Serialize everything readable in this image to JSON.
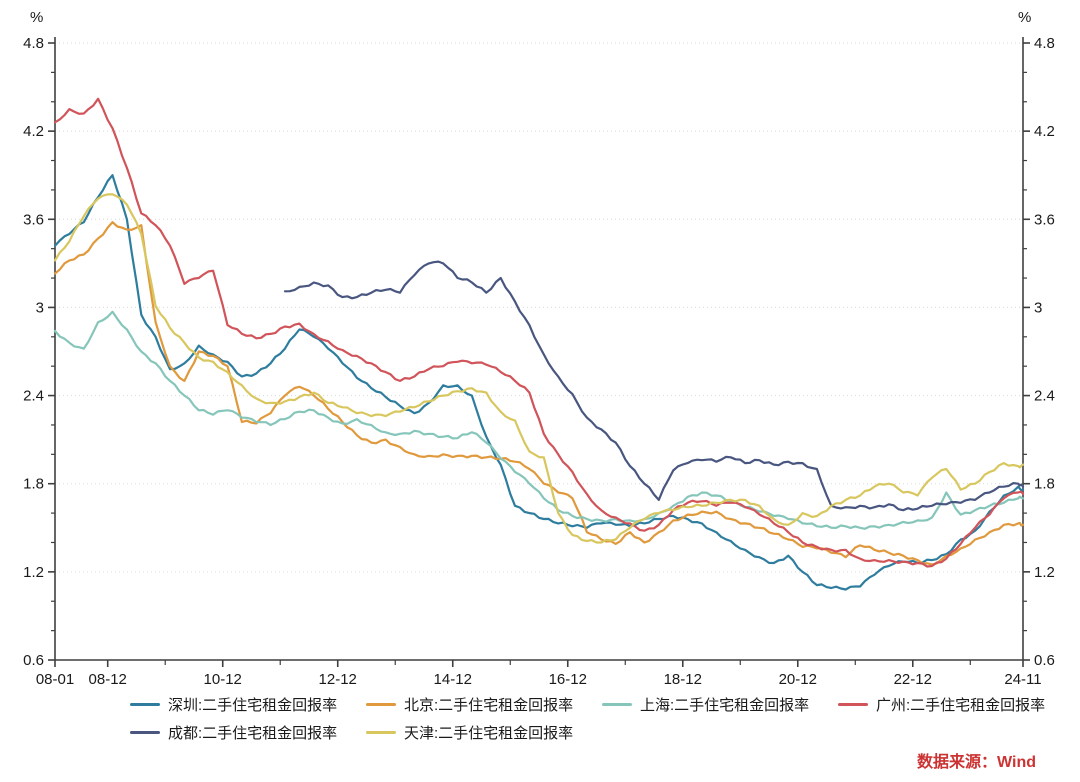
{
  "source_note": {
    "text": "数据来源：Wind"
  },
  "colors": {
    "axis": "#3f3f3f",
    "grid": "#d9d9d9",
    "text": "#1a1a1a",
    "source": "#cc3333",
    "background": "#ffffff"
  },
  "chart_data": {
    "type": "line",
    "title": "",
    "unit_label": "%",
    "xlabel": "",
    "ylabel": "%",
    "ylim": [
      0.6,
      4.8
    ],
    "grid": "dotted horizontal at each major y tick",
    "legend_position": "bottom",
    "y_ticks": [
      0.6,
      1.2,
      1.8,
      2.4,
      3,
      3.6,
      4.2,
      4.8
    ],
    "y_tick_labels": [
      "0.6",
      "1.2",
      "1.8",
      "2.4",
      "3",
      "3.6",
      "4.2",
      "4.8"
    ],
    "y_minor_step": 0.2,
    "x_months_total": 202,
    "x_tick_labels": [
      {
        "label": "08-01",
        "month": 0
      },
      {
        "label": "08-12",
        "month": 11
      },
      {
        "label": "10-12",
        "month": 35
      },
      {
        "label": "12-12",
        "month": 59
      },
      {
        "label": "14-12",
        "month": 83
      },
      {
        "label": "16-12",
        "month": 107
      },
      {
        "label": "18-12",
        "month": 131
      },
      {
        "label": "20-12",
        "month": 155
      },
      {
        "label": "22-12",
        "month": 179
      },
      {
        "label": "24-11",
        "month": 202
      }
    ],
    "x_minor_tick_months": [
      23,
      47,
      71,
      95,
      119,
      143,
      167,
      191
    ],
    "sample_months": [
      0,
      3,
      6,
      9,
      12,
      15,
      18,
      21,
      24,
      27,
      30,
      33,
      36,
      39,
      42,
      45,
      48,
      51,
      54,
      57,
      60,
      63,
      66,
      69,
      72,
      75,
      78,
      81,
      84,
      87,
      90,
      93,
      96,
      99,
      102,
      105,
      108,
      111,
      114,
      117,
      120,
      123,
      126,
      129,
      132,
      135,
      138,
      141,
      144,
      147,
      150,
      153,
      156,
      159,
      162,
      165,
      168,
      171,
      174,
      177,
      180,
      183,
      186,
      189,
      192,
      195,
      198,
      201,
      202
    ],
    "series": [
      {
        "name": "深圳:二手住宅租金回报率",
        "color": "#2e7d9e",
        "values": [
          3.42,
          3.5,
          3.58,
          3.75,
          3.9,
          3.6,
          2.95,
          2.8,
          2.58,
          2.62,
          2.74,
          2.68,
          2.63,
          2.53,
          2.55,
          2.62,
          2.72,
          2.85,
          2.8,
          2.72,
          2.62,
          2.52,
          2.45,
          2.39,
          2.33,
          2.28,
          2.35,
          2.47,
          2.47,
          2.4,
          2.12,
          1.93,
          1.65,
          1.6,
          1.56,
          1.53,
          1.51,
          1.5,
          1.53,
          1.52,
          1.51,
          1.53,
          1.56,
          1.58,
          1.56,
          1.53,
          1.47,
          1.41,
          1.35,
          1.3,
          1.26,
          1.31,
          1.2,
          1.11,
          1.09,
          1.08,
          1.1,
          1.18,
          1.24,
          1.27,
          1.26,
          1.28,
          1.32,
          1.42,
          1.48,
          1.61,
          1.72,
          1.78,
          1.76
        ]
      },
      {
        "name": "北京:二手住宅租金回报率",
        "color": "#e0993c",
        "values": [
          3.23,
          3.32,
          3.36,
          3.47,
          3.58,
          3.53,
          3.56,
          2.9,
          2.6,
          2.5,
          2.7,
          2.67,
          2.6,
          2.22,
          2.21,
          2.28,
          2.4,
          2.46,
          2.4,
          2.31,
          2.22,
          2.13,
          2.08,
          2.1,
          2.05,
          2.0,
          1.99,
          2.0,
          1.99,
          1.99,
          1.98,
          1.97,
          1.95,
          1.9,
          1.8,
          1.74,
          1.7,
          1.47,
          1.42,
          1.39,
          1.47,
          1.4,
          1.47,
          1.55,
          1.59,
          1.61,
          1.61,
          1.56,
          1.53,
          1.5,
          1.46,
          1.42,
          1.37,
          1.36,
          1.33,
          1.3,
          1.38,
          1.35,
          1.33,
          1.31,
          1.28,
          1.25,
          1.31,
          1.36,
          1.42,
          1.47,
          1.52,
          1.53,
          1.52
        ]
      },
      {
        "name": "上海:二手住宅租金回报率",
        "color": "#86c6ba",
        "values": [
          2.84,
          2.76,
          2.72,
          2.9,
          2.97,
          2.85,
          2.7,
          2.62,
          2.5,
          2.4,
          2.3,
          2.27,
          2.3,
          2.25,
          2.22,
          2.2,
          2.24,
          2.29,
          2.3,
          2.25,
          2.21,
          2.24,
          2.2,
          2.15,
          2.14,
          2.16,
          2.14,
          2.12,
          2.11,
          2.15,
          2.08,
          1.97,
          1.88,
          1.8,
          1.7,
          1.62,
          1.58,
          1.56,
          1.55,
          1.56,
          1.55,
          1.56,
          1.6,
          1.65,
          1.71,
          1.74,
          1.72,
          1.68,
          1.64,
          1.61,
          1.58,
          1.56,
          1.53,
          1.51,
          1.5,
          1.51,
          1.5,
          1.51,
          1.52,
          1.54,
          1.55,
          1.57,
          1.74,
          1.59,
          1.62,
          1.65,
          1.67,
          1.7,
          1.7
        ]
      },
      {
        "name": "广州:二手住宅租金回报率",
        "color": "#d05459",
        "values": [
          4.26,
          4.35,
          4.32,
          4.42,
          4.22,
          3.95,
          3.64,
          3.56,
          3.42,
          3.16,
          3.2,
          3.25,
          2.88,
          2.82,
          2.79,
          2.82,
          2.87,
          2.89,
          2.82,
          2.77,
          2.71,
          2.67,
          2.62,
          2.56,
          2.5,
          2.53,
          2.58,
          2.6,
          2.63,
          2.62,
          2.61,
          2.56,
          2.5,
          2.42,
          2.14,
          2.0,
          1.88,
          1.73,
          1.62,
          1.57,
          1.53,
          1.48,
          1.52,
          1.62,
          1.67,
          1.68,
          1.65,
          1.67,
          1.64,
          1.59,
          1.53,
          1.47,
          1.4,
          1.37,
          1.35,
          1.35,
          1.29,
          1.28,
          1.28,
          1.27,
          1.26,
          1.24,
          1.29,
          1.39,
          1.5,
          1.59,
          1.7,
          1.74,
          1.73
        ]
      },
      {
        "name": "成都:二手住宅租金回报率",
        "color": "#485680",
        "values": [
          null,
          null,
          null,
          null,
          null,
          null,
          null,
          null,
          null,
          null,
          null,
          null,
          null,
          null,
          null,
          null,
          3.11,
          3.14,
          3.17,
          3.15,
          3.07,
          3.07,
          3.1,
          3.12,
          3.1,
          3.22,
          3.3,
          3.3,
          3.2,
          3.17,
          3.1,
          3.2,
          3.04,
          2.88,
          2.68,
          2.53,
          2.41,
          2.25,
          2.17,
          2.08,
          1.92,
          1.8,
          1.69,
          1.89,
          1.94,
          1.96,
          1.95,
          1.98,
          1.94,
          1.96,
          1.93,
          1.95,
          1.94,
          1.9,
          1.65,
          1.64,
          1.65,
          1.64,
          1.66,
          1.62,
          1.63,
          1.65,
          1.66,
          1.67,
          1.69,
          1.74,
          1.78,
          1.8,
          1.78
        ]
      },
      {
        "name": "天津:二手住宅租金回报率",
        "color": "#d8c75f",
        "values": [
          3.32,
          3.45,
          3.62,
          3.74,
          3.77,
          3.7,
          3.5,
          3.01,
          2.86,
          2.76,
          2.66,
          2.63,
          2.56,
          2.47,
          2.38,
          2.35,
          2.36,
          2.39,
          2.42,
          2.35,
          2.32,
          2.28,
          2.26,
          2.26,
          2.29,
          2.32,
          2.36,
          2.4,
          2.43,
          2.45,
          2.42,
          2.29,
          2.23,
          2.02,
          1.98,
          1.6,
          1.45,
          1.41,
          1.4,
          1.42,
          1.5,
          1.56,
          1.6,
          1.62,
          1.64,
          1.65,
          1.67,
          1.69,
          1.69,
          1.65,
          1.56,
          1.52,
          1.6,
          1.58,
          1.65,
          1.69,
          1.72,
          1.78,
          1.8,
          1.74,
          1.72,
          1.84,
          1.9,
          1.76,
          1.8,
          1.88,
          1.94,
          1.92,
          1.93
        ]
      }
    ],
    "legend_order_rows": [
      [
        0,
        1,
        2,
        3
      ],
      [
        4,
        5
      ]
    ]
  }
}
